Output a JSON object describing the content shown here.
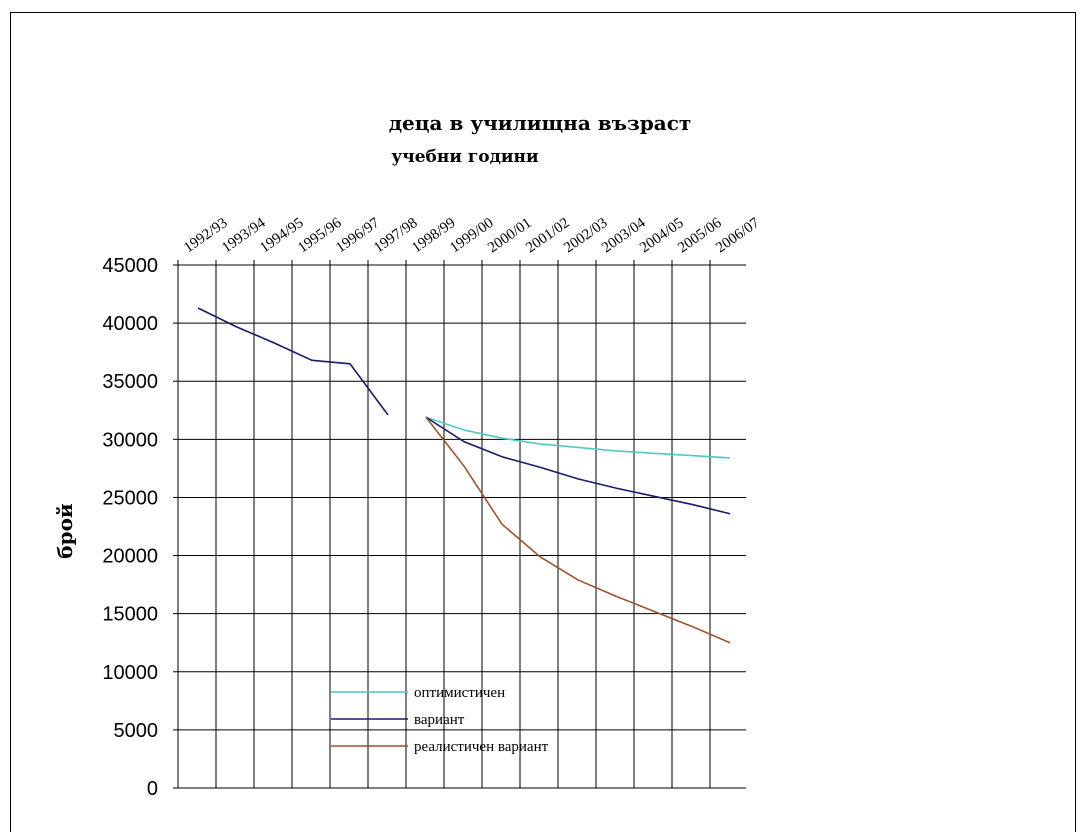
{
  "chart_data": {
    "type": "line",
    "title": "деца в училищна възраст",
    "subtitle": "учебни години",
    "ylabel": "брой",
    "ylim": [
      0,
      45000
    ],
    "yticks": [
      0,
      5000,
      10000,
      15000,
      20000,
      25000,
      30000,
      35000,
      40000,
      45000
    ],
    "grid": true,
    "legend_placement": "bottom-center",
    "categories": [
      "1992/93",
      "1993/94",
      "1994/95",
      "1995/96",
      "1996/97",
      "1997/98",
      "1998/99",
      "1999/00",
      "2000/01",
      "2001/02",
      "2002/03",
      "2003/04",
      "2004/05",
      "2005/06",
      "2006/07"
    ],
    "historical": {
      "color": "#1a1a6e",
      "values": [
        41300,
        39700,
        38300,
        36800,
        36500,
        32100
      ]
    },
    "series": [
      {
        "name": "оптимистичен",
        "color": "#4cc9c0",
        "values": [
          null,
          null,
          null,
          null,
          null,
          null,
          31900,
          30800,
          30100,
          29600,
          29300,
          29000,
          28800,
          28600,
          28400
        ]
      },
      {
        "name": "вариант",
        "color": "#1a1a6e",
        "values": [
          null,
          null,
          null,
          null,
          null,
          null,
          31900,
          29800,
          28500,
          27600,
          26600,
          25800,
          25100,
          24400,
          23600
        ]
      },
      {
        "name": "реалистичен вариант",
        "color": "#a0522d",
        "values": [
          null,
          null,
          null,
          null,
          null,
          null,
          31900,
          27700,
          22700,
          19900,
          17900,
          16500,
          15200,
          13900,
          12500
        ]
      }
    ]
  }
}
